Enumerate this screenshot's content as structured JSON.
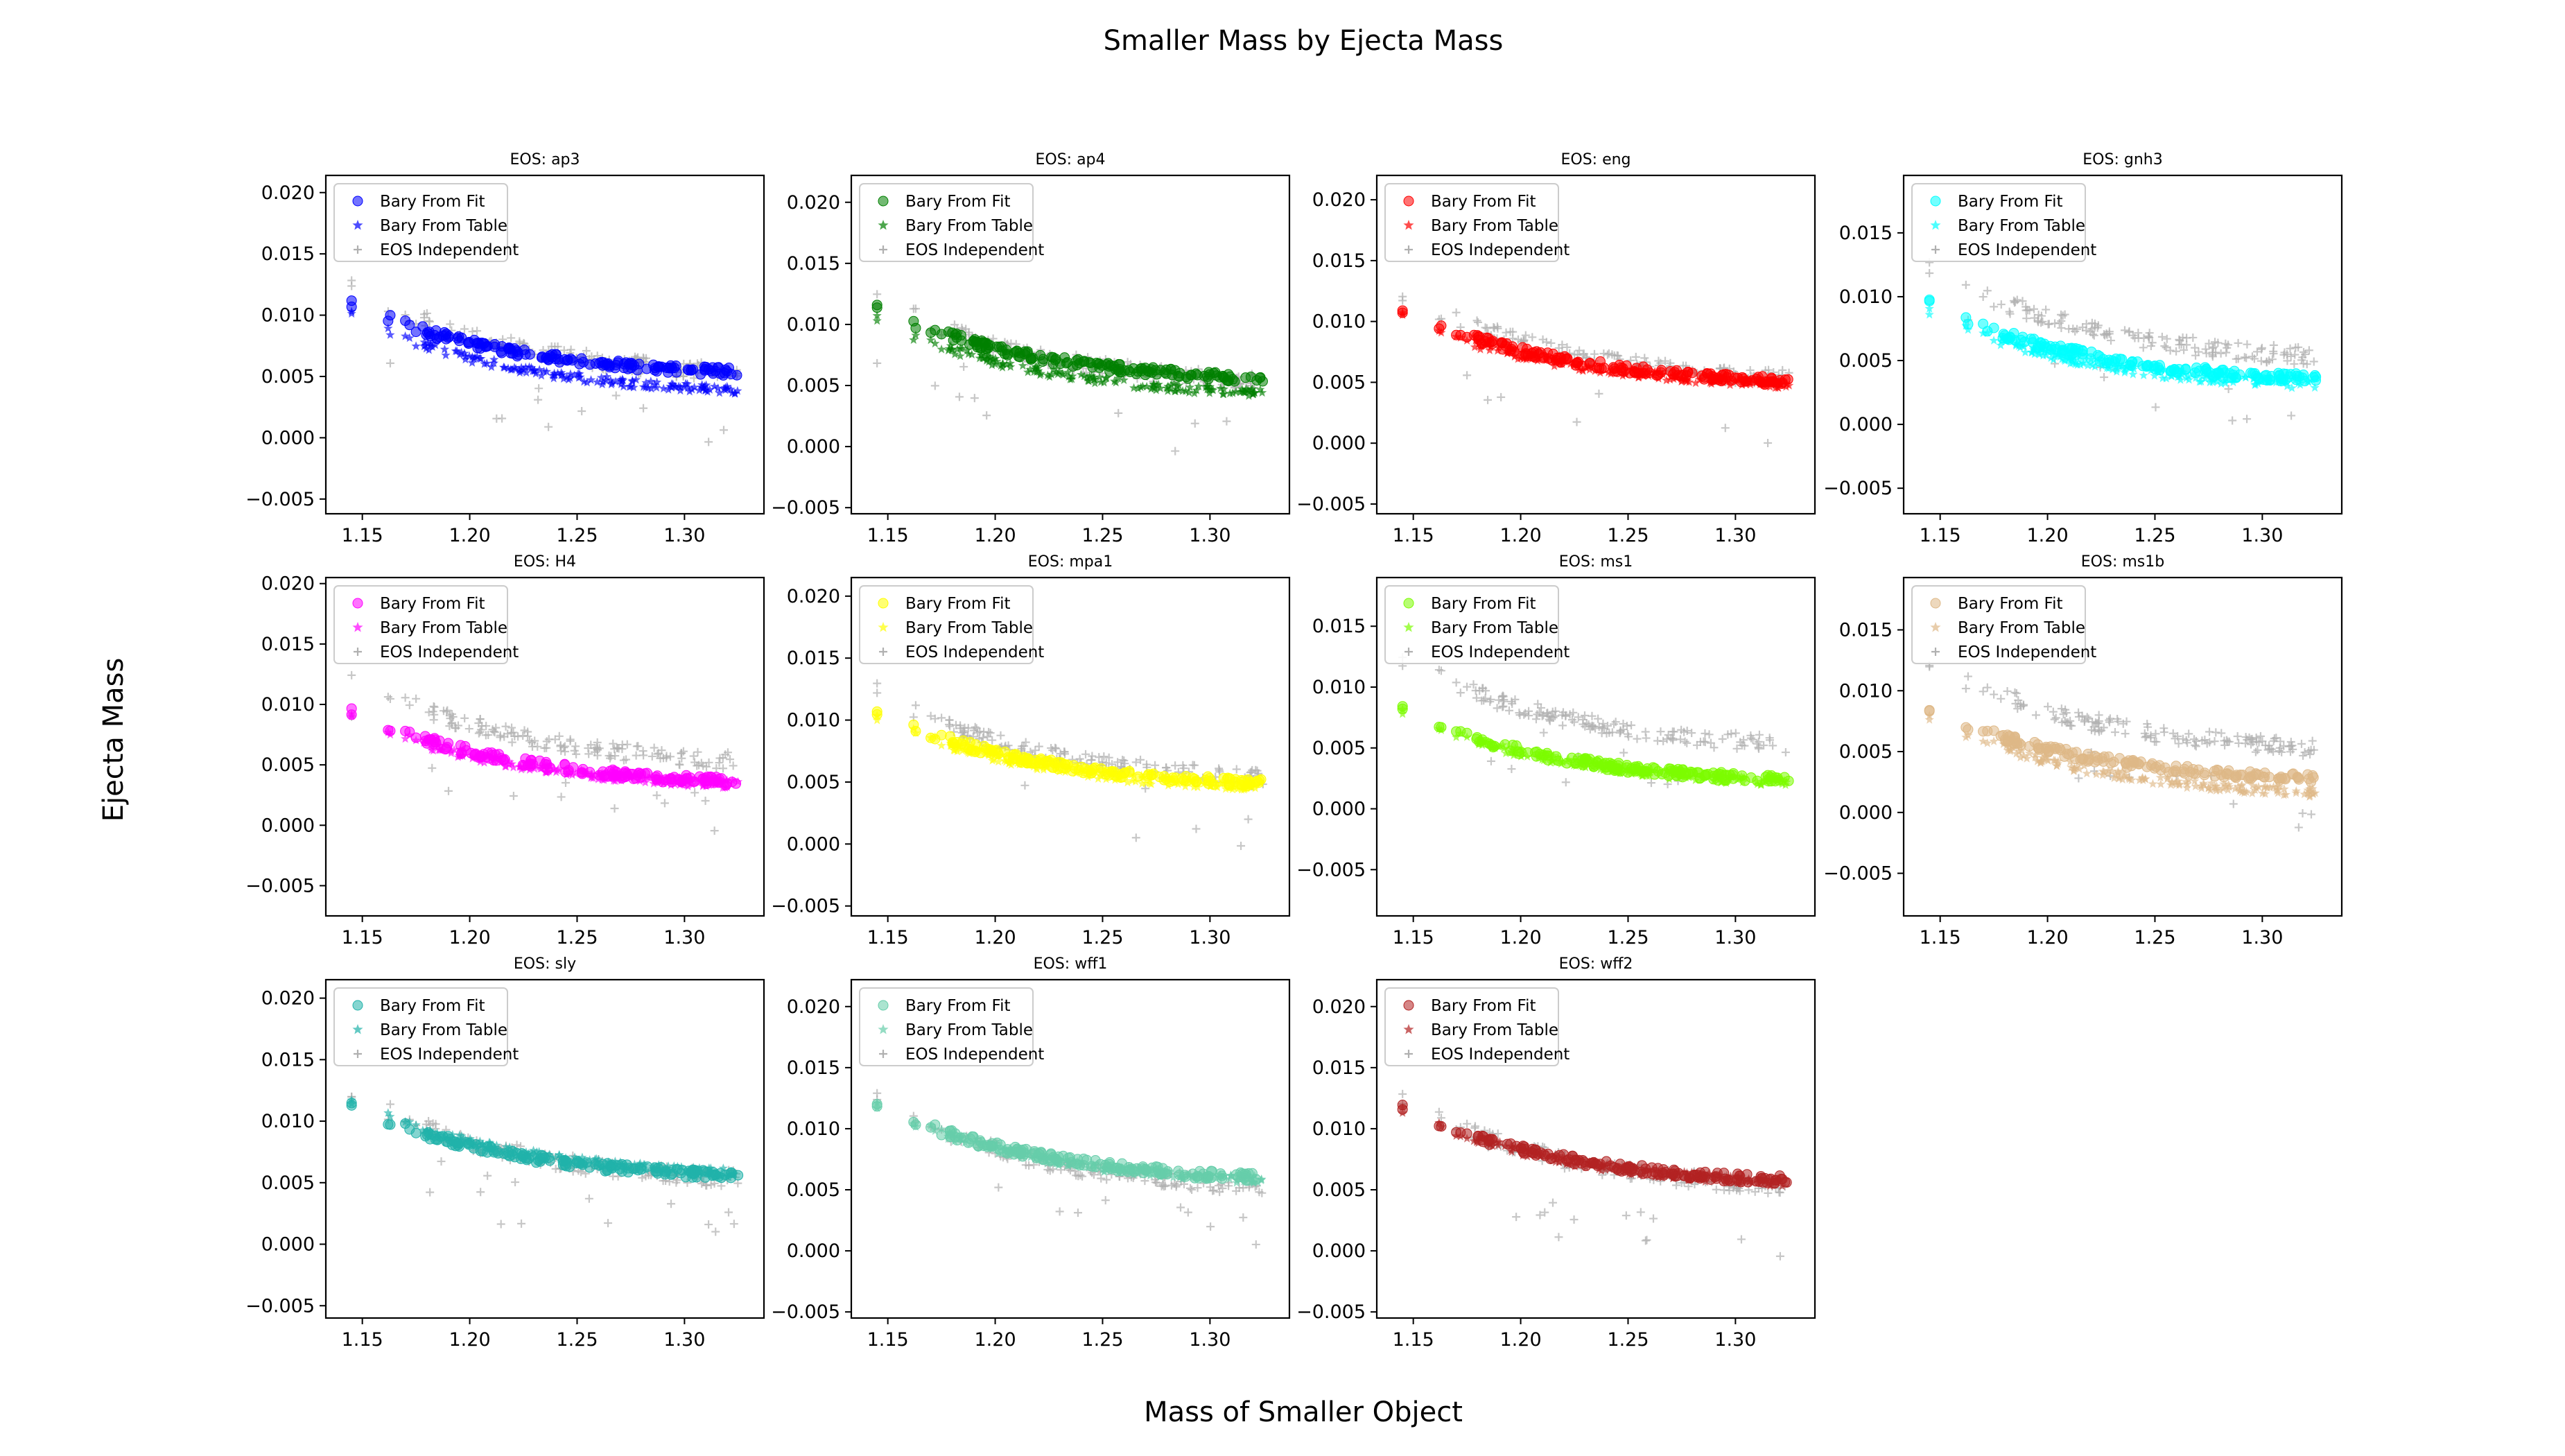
{
  "figure": {
    "title": "Smaller Mass by Ejecta Mass",
    "xlabel": "Mass of Smaller Object",
    "ylabel": "Ejecta Mass"
  },
  "legend_labels": [
    "Bary From Fit",
    "Bary From Table",
    "EOS Independent"
  ],
  "independent_color": "#b0b0b0",
  "chart_data": [
    {
      "type": "scatter",
      "title": "EOS: ap3",
      "color": "#0000ff",
      "xlim": [
        1.133,
        1.337
      ],
      "ylim": [
        -0.0062,
        0.0214
      ],
      "xticks": [
        "1.15",
        "1.20",
        "1.25",
        "1.30"
      ],
      "yticks": [
        "0.020",
        "0.015",
        "0.010",
        "0.005",
        "0.000",
        "−0.005"
      ],
      "fit_start": 0.011,
      "fit_end": 0.0048,
      "table_start": 0.01,
      "table_end": 0.0033,
      "indep_start": 0.0122,
      "indep_end": 0.0044,
      "legend": "upper left"
    },
    {
      "type": "scatter",
      "title": "EOS: ap4",
      "color": "#008000",
      "xlim": [
        1.133,
        1.337
      ],
      "ylim": [
        -0.0055,
        0.0222
      ],
      "xticks": [
        "1.15",
        "1.20",
        "1.25",
        "1.30"
      ],
      "yticks": [
        "0.020",
        "0.015",
        "0.010",
        "0.005",
        "0.000",
        "−0.005"
      ],
      "fit_start": 0.0114,
      "fit_end": 0.005,
      "table_start": 0.0104,
      "table_end": 0.0038,
      "indep_start": 0.0122,
      "indep_end": 0.0044,
      "legend": "upper left"
    },
    {
      "type": "scatter",
      "title": "EOS: eng",
      "color": "#ff0000",
      "xlim": [
        1.133,
        1.337
      ],
      "ylim": [
        -0.0058,
        0.022
      ],
      "xticks": [
        "1.15",
        "1.20",
        "1.25",
        "1.30"
      ],
      "yticks": [
        "0.020",
        "0.015",
        "0.010",
        "0.005",
        "0.000",
        "−0.005"
      ],
      "fit_start": 0.011,
      "fit_end": 0.0045,
      "table_start": 0.0104,
      "table_end": 0.0043,
      "indep_start": 0.0122,
      "indep_end": 0.0044,
      "legend": "upper left"
    },
    {
      "type": "scatter",
      "title": "EOS: gnh3",
      "color": "#00ffff",
      "xlim": [
        1.133,
        1.337
      ],
      "ylim": [
        -0.007,
        0.0195
      ],
      "xticks": [
        "1.15",
        "1.20",
        "1.25",
        "1.30"
      ],
      "yticks": [
        "0.015",
        "0.010",
        "0.005",
        "0.000",
        "−0.005"
      ],
      "fit_start": 0.0095,
      "fit_end": 0.003,
      "table_start": 0.0088,
      "table_end": 0.0025,
      "indep_start": 0.0122,
      "indep_end": 0.0044,
      "legend": "upper left"
    },
    {
      "type": "scatter",
      "title": "EOS: H4",
      "color": "#ff00ff",
      "xlim": [
        1.133,
        1.337
      ],
      "ylim": [
        -0.0075,
        0.0205
      ],
      "xticks": [
        "1.15",
        "1.20",
        "1.25",
        "1.30"
      ],
      "yticks": [
        "0.020",
        "0.015",
        "0.010",
        "0.005",
        "0.000",
        "−0.005"
      ],
      "fit_start": 0.0095,
      "fit_end": 0.003,
      "table_start": 0.009,
      "table_end": 0.0028,
      "indep_start": 0.0122,
      "indep_end": 0.0044,
      "legend": "upper left"
    },
    {
      "type": "scatter",
      "title": "EOS: mpa1",
      "color": "#ffff00",
      "xlim": [
        1.133,
        1.337
      ],
      "ylim": [
        -0.0058,
        0.0215
      ],
      "xticks": [
        "1.15",
        "1.20",
        "1.25",
        "1.30"
      ],
      "yticks": [
        "0.020",
        "0.015",
        "0.010",
        "0.005",
        "0.000",
        "−0.005"
      ],
      "fit_start": 0.0107,
      "fit_end": 0.0043,
      "table_start": 0.0103,
      "table_end": 0.004,
      "indep_start": 0.0122,
      "indep_end": 0.0044,
      "legend": "upper left"
    },
    {
      "type": "scatter",
      "title": "EOS: ms1",
      "color": "#7cfc00",
      "xlim": [
        1.133,
        1.337
      ],
      "ylim": [
        -0.0088,
        0.019
      ],
      "xticks": [
        "1.15",
        "1.20",
        "1.25",
        "1.30"
      ],
      "yticks": [
        "0.015",
        "0.010",
        "0.005",
        "0.000",
        "−0.005"
      ],
      "fit_start": 0.0081,
      "fit_end": 0.0018,
      "table_start": 0.0079,
      "table_end": 0.0016,
      "indep_start": 0.0122,
      "indep_end": 0.0044,
      "legend": "upper left"
    },
    {
      "type": "scatter",
      "title": "EOS: ms1b",
      "color": "#deb887",
      "xlim": [
        1.133,
        1.337
      ],
      "ylim": [
        -0.0085,
        0.0193
      ],
      "xticks": [
        "1.15",
        "1.20",
        "1.25",
        "1.30"
      ],
      "yticks": [
        "0.015",
        "0.010",
        "0.005",
        "0.000",
        "−0.005"
      ],
      "fit_start": 0.0085,
      "fit_end": 0.0022,
      "table_start": 0.0078,
      "table_end": 0.001,
      "indep_start": 0.0122,
      "indep_end": 0.0044,
      "legend": "upper left"
    },
    {
      "type": "scatter",
      "title": "EOS: sly",
      "color": "#20b2aa",
      "xlim": [
        1.133,
        1.337
      ],
      "ylim": [
        -0.006,
        0.0215
      ],
      "xticks": [
        "1.15",
        "1.20",
        "1.25",
        "1.30"
      ],
      "yticks": [
        "0.020",
        "0.015",
        "0.010",
        "0.005",
        "0.000",
        "−0.005"
      ],
      "fit_start": 0.0113,
      "fit_end": 0.005,
      "table_start": 0.0117,
      "table_end": 0.0052,
      "indep_start": 0.0122,
      "indep_end": 0.0044,
      "legend": "upper left"
    },
    {
      "type": "scatter",
      "title": "EOS: wff1",
      "color": "#66cdaa",
      "xlim": [
        1.133,
        1.337
      ],
      "ylim": [
        -0.0055,
        0.0222
      ],
      "xticks": [
        "1.15",
        "1.20",
        "1.25",
        "1.30"
      ],
      "yticks": [
        "0.020",
        "0.015",
        "0.010",
        "0.005",
        "0.000",
        "−0.005"
      ],
      "fit_start": 0.012,
      "fit_end": 0.0054,
      "table_start": 0.0118,
      "table_end": 0.0052,
      "indep_start": 0.0122,
      "indep_end": 0.0044,
      "legend": "upper left"
    },
    {
      "type": "scatter",
      "title": "EOS: wff2",
      "color": "#b22222",
      "xlim": [
        1.133,
        1.337
      ],
      "ylim": [
        -0.0055,
        0.0222
      ],
      "xticks": [
        "1.15",
        "1.20",
        "1.25",
        "1.30"
      ],
      "yticks": [
        "0.020",
        "0.015",
        "0.010",
        "0.005",
        "0.000",
        "−0.005"
      ],
      "fit_start": 0.0117,
      "fit_end": 0.0052,
      "table_start": 0.0116,
      "table_end": 0.005,
      "indep_start": 0.0122,
      "indep_end": 0.0044,
      "legend": "upper left"
    }
  ]
}
